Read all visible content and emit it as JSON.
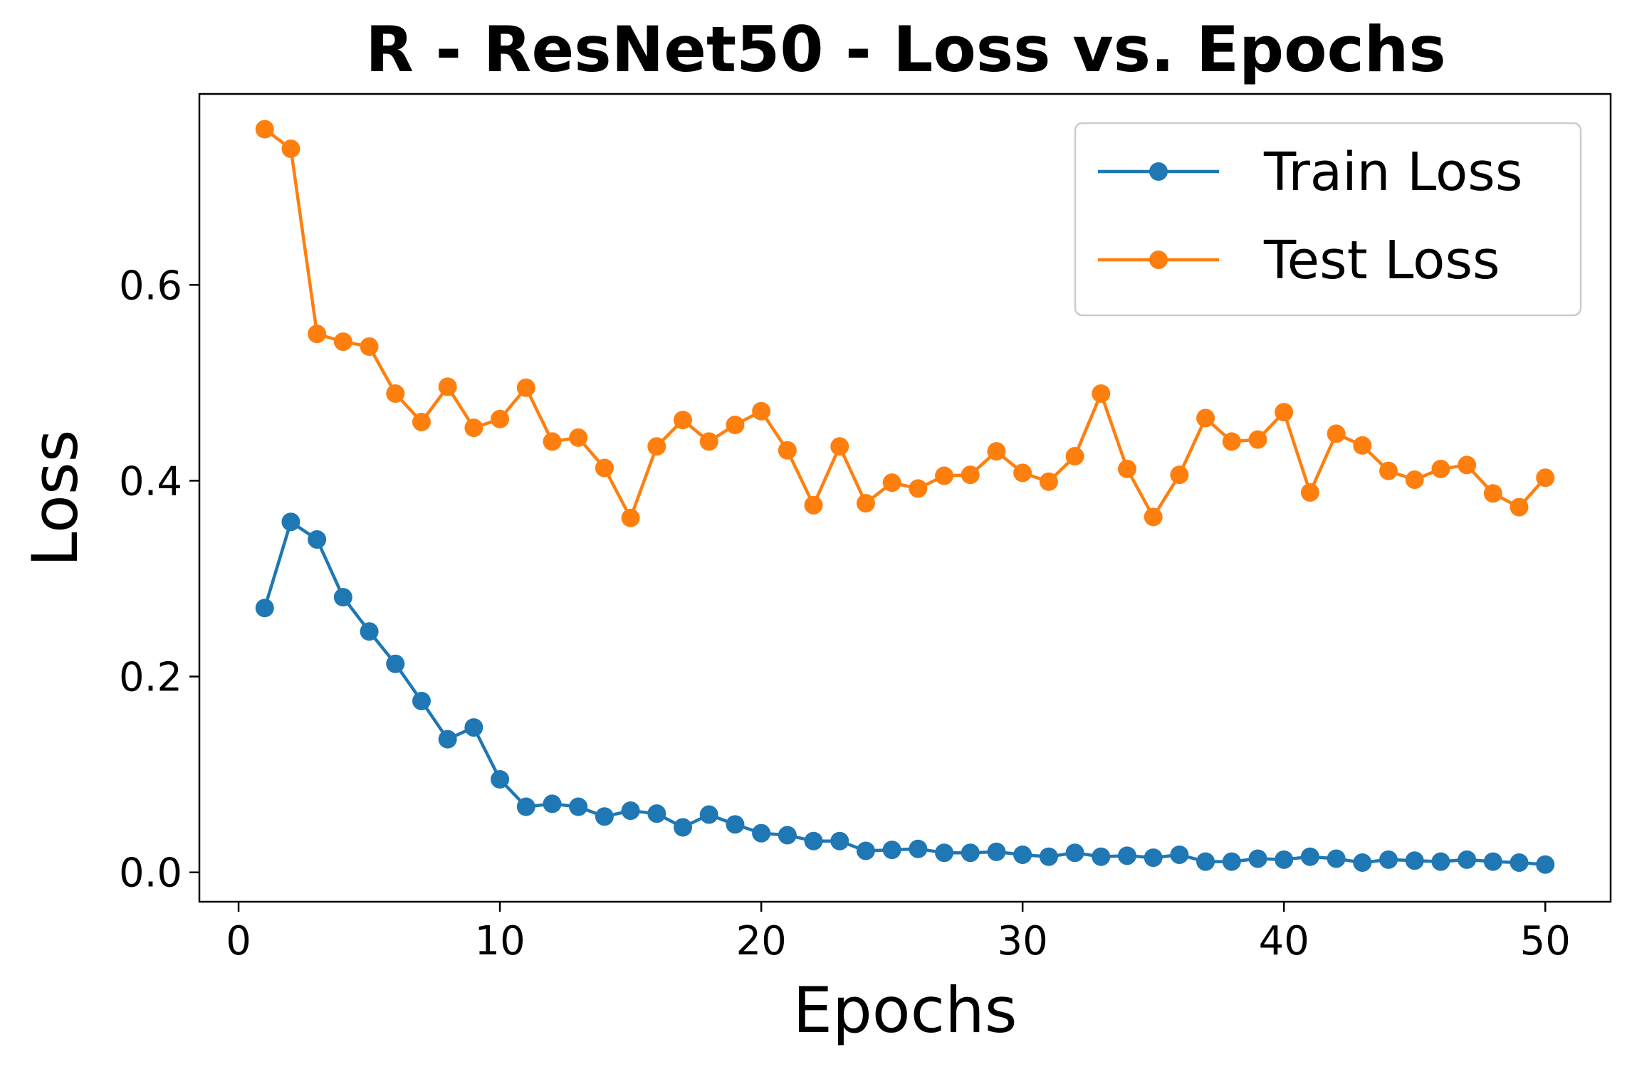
{
  "chart_data": {
    "type": "line",
    "title": "R - ResNet50 - Loss vs. Epochs",
    "xlabel": "Epochs",
    "ylabel": "Loss",
    "xlim": [
      -1.5,
      52.5
    ],
    "ylim": [
      -0.03,
      0.795
    ],
    "xticks": [
      0,
      10,
      20,
      30,
      40,
      50
    ],
    "yticks": [
      0.0,
      0.2,
      0.4,
      0.6
    ],
    "xtick_labels": [
      "0",
      "10",
      "20",
      "30",
      "40",
      "50"
    ],
    "ytick_labels": [
      "0.0",
      "0.2",
      "0.4",
      "0.6"
    ],
    "grid": false,
    "legend_position": "top-right",
    "x": [
      1,
      2,
      3,
      4,
      5,
      6,
      7,
      8,
      9,
      10,
      11,
      12,
      13,
      14,
      15,
      16,
      17,
      18,
      19,
      20,
      21,
      22,
      23,
      24,
      25,
      26,
      27,
      28,
      29,
      30,
      31,
      32,
      33,
      34,
      35,
      36,
      37,
      38,
      39,
      40,
      41,
      42,
      43,
      44,
      45,
      46,
      47,
      48,
      49,
      50
    ],
    "series": [
      {
        "name": "Train Loss",
        "color": "#1f77b4",
        "values": [
          0.27,
          0.358,
          0.34,
          0.281,
          0.246,
          0.213,
          0.175,
          0.136,
          0.148,
          0.095,
          0.067,
          0.07,
          0.067,
          0.057,
          0.063,
          0.06,
          0.046,
          0.059,
          0.049,
          0.04,
          0.038,
          0.032,
          0.032,
          0.022,
          0.023,
          0.024,
          0.02,
          0.02,
          0.021,
          0.018,
          0.016,
          0.02,
          0.016,
          0.017,
          0.015,
          0.018,
          0.011,
          0.011,
          0.014,
          0.013,
          0.016,
          0.014,
          0.01,
          0.013,
          0.012,
          0.011,
          0.013,
          0.011,
          0.01,
          0.008
        ]
      },
      {
        "name": "Test Loss",
        "color": "#ff7f0e",
        "values": [
          0.759,
          0.739,
          0.55,
          0.542,
          0.537,
          0.489,
          0.46,
          0.496,
          0.454,
          0.463,
          0.495,
          0.44,
          0.444,
          0.413,
          0.362,
          0.435,
          0.462,
          0.44,
          0.457,
          0.471,
          0.431,
          0.375,
          0.435,
          0.377,
          0.398,
          0.392,
          0.405,
          0.406,
          0.43,
          0.408,
          0.399,
          0.425,
          0.489,
          0.412,
          0.363,
          0.406,
          0.464,
          0.44,
          0.442,
          0.47,
          0.388,
          0.448,
          0.436,
          0.41,
          0.401,
          0.412,
          0.416,
          0.387,
          0.373,
          0.403
        ]
      }
    ]
  }
}
